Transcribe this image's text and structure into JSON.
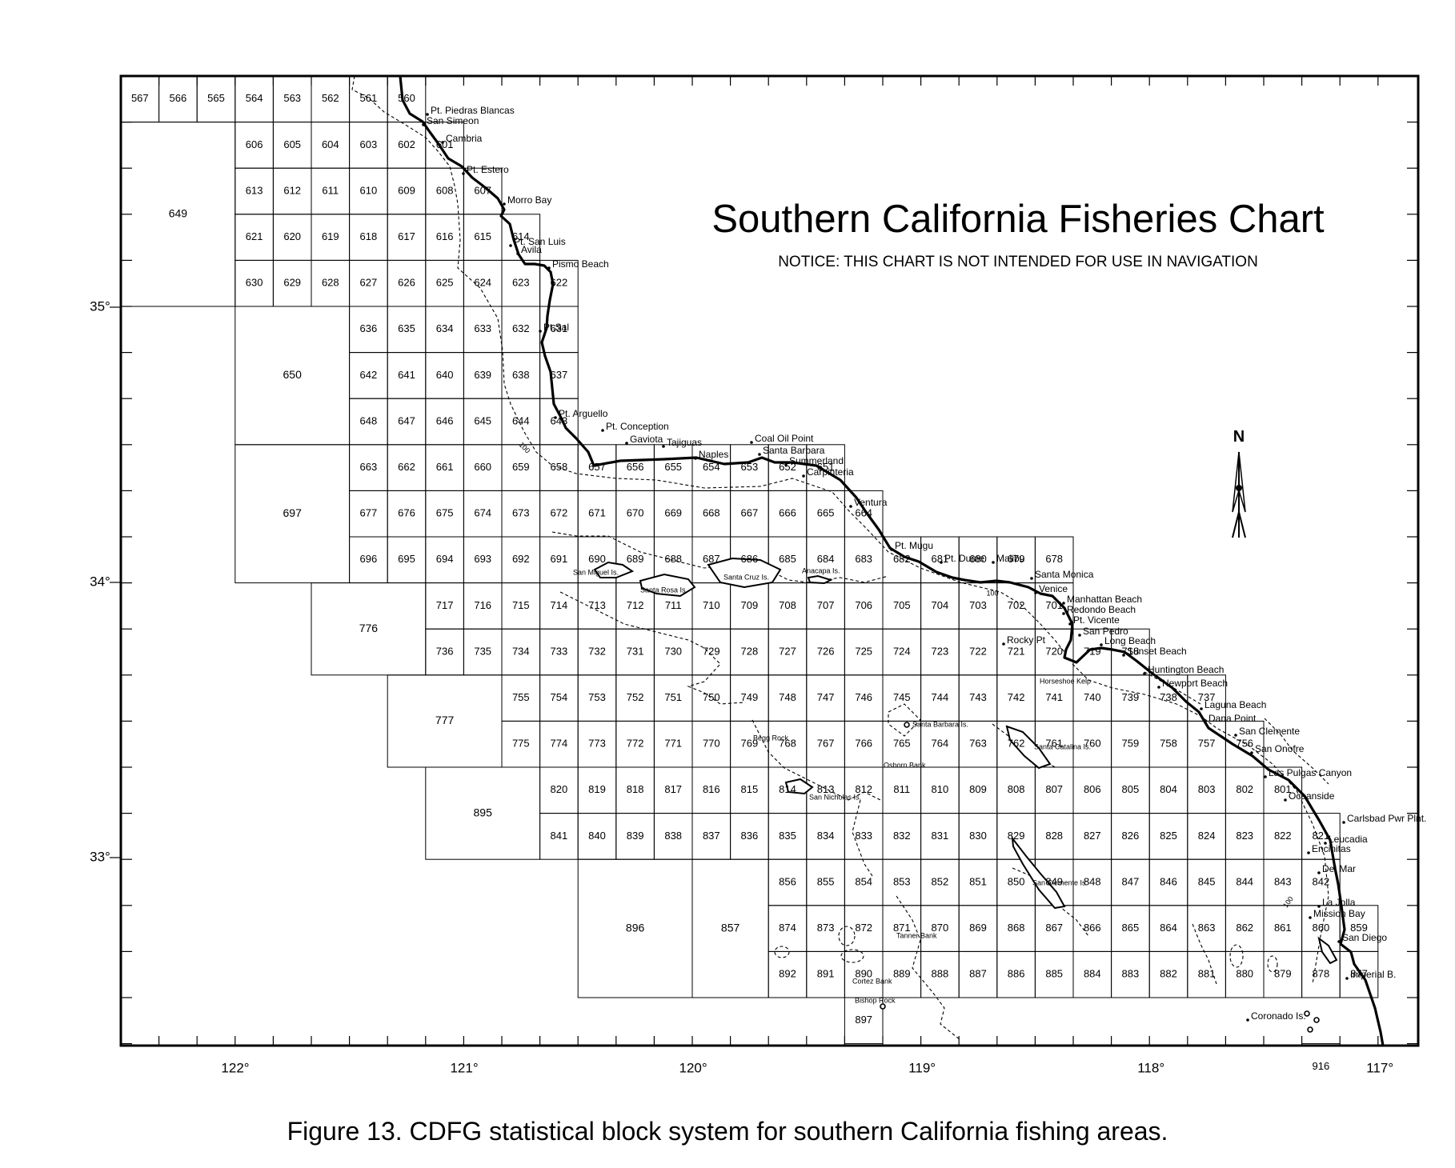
{
  "title": "Southern California Fisheries Chart",
  "notice": "NOTICE: THIS CHART IS NOT INTENDED FOR USE IN NAVIGATION",
  "caption": "Figure 13. CDFG statistical block system for southern California fishing areas.",
  "north_label": "N",
  "contour_label": "100",
  "longitude_labels": [
    {
      "label": "122°",
      "lon": -122
    },
    {
      "label": "121°",
      "lon": -121
    },
    {
      "label": "120°",
      "lon": -120
    },
    {
      "label": "119°",
      "lon": -119
    },
    {
      "label": "118°",
      "lon": -118
    },
    {
      "label": "117°",
      "lon": -117
    }
  ],
  "latitude_labels": [
    {
      "label": "35°",
      "lat": 35
    },
    {
      "label": "34°",
      "lat": 34
    },
    {
      "label": "33°",
      "lat": 33
    }
  ],
  "block_rows": [
    {
      "row": 0,
      "start_col": 0,
      "blocks": [
        "567",
        "566",
        "565",
        "564",
        "563",
        "562",
        "561",
        "560"
      ]
    },
    {
      "row": 1,
      "start_col": 3,
      "blocks": [
        "606",
        "605",
        "604",
        "603",
        "602",
        "601"
      ]
    },
    {
      "row": 2,
      "start_col": 3,
      "blocks": [
        "613",
        "612",
        "611",
        "610",
        "609",
        "608",
        "607"
      ]
    },
    {
      "row": 3,
      "start_col": 3,
      "blocks": [
        "621",
        "620",
        "619",
        "618",
        "617",
        "616",
        "615",
        "614"
      ]
    },
    {
      "row": 4,
      "start_col": 3,
      "blocks": [
        "630",
        "629",
        "628",
        "627",
        "626",
        "625",
        "624",
        "623",
        "622"
      ]
    },
    {
      "row": 5,
      "start_col": 6,
      "blocks": [
        "636",
        "635",
        "634",
        "633",
        "632",
        "631"
      ]
    },
    {
      "row": 6,
      "start_col": 6,
      "blocks": [
        "642",
        "641",
        "640",
        "639",
        "638",
        "637"
      ]
    },
    {
      "row": 7,
      "start_col": 6,
      "blocks": [
        "648",
        "647",
        "646",
        "645",
        "644",
        "643"
      ]
    },
    {
      "row": 8,
      "start_col": 6,
      "blocks": [
        "663",
        "662",
        "661",
        "660",
        "659",
        "658",
        "657",
        "656",
        "655",
        "654",
        "653",
        "652",
        "651"
      ]
    },
    {
      "row": 9,
      "start_col": 6,
      "blocks": [
        "677",
        "676",
        "675",
        "674",
        "673",
        "672",
        "671",
        "670",
        "669",
        "668",
        "667",
        "666",
        "665",
        "664"
      ]
    },
    {
      "row": 10,
      "start_col": 6,
      "blocks": [
        "696",
        "695",
        "694",
        "693",
        "692",
        "691",
        "690",
        "689",
        "688",
        "687",
        "686",
        "685",
        "684",
        "683",
        "682",
        "681",
        "680",
        "679",
        "678"
      ]
    },
    {
      "row": 11,
      "start_col": 8,
      "blocks": [
        "717",
        "716",
        "715",
        "714",
        "713",
        "712",
        "711",
        "710",
        "709",
        "708",
        "707",
        "706",
        "705",
        "704",
        "703",
        "702",
        "701"
      ]
    },
    {
      "row": 12,
      "start_col": 8,
      "blocks": [
        "736",
        "735",
        "734",
        "733",
        "732",
        "731",
        "730",
        "729",
        "728",
        "727",
        "726",
        "725",
        "724",
        "723",
        "722",
        "721",
        "720",
        "719",
        "718"
      ]
    },
    {
      "row": 13,
      "start_col": 10,
      "blocks": [
        "755",
        "754",
        "753",
        "752",
        "751",
        "750",
        "749",
        "748",
        "747",
        "746",
        "745",
        "744",
        "743",
        "742",
        "741",
        "740",
        "739",
        "738",
        "737"
      ]
    },
    {
      "row": 14,
      "start_col": 10,
      "blocks": [
        "775",
        "774",
        "773",
        "772",
        "771",
        "770",
        "769",
        "768",
        "767",
        "766",
        "765",
        "764",
        "763",
        "762",
        "761",
        "760",
        "759",
        "758",
        "757",
        "756"
      ]
    },
    {
      "row": 15,
      "start_col": 11,
      "blocks": [
        "820",
        "819",
        "818",
        "817",
        "816",
        "815",
        "814",
        "813",
        "812",
        "811",
        "810",
        "809",
        "808",
        "807",
        "806",
        "805",
        "804",
        "803",
        "802",
        "801"
      ]
    },
    {
      "row": 16,
      "start_col": 11,
      "blocks": [
        "841",
        "840",
        "839",
        "838",
        "837",
        "836",
        "835",
        "834",
        "833",
        "832",
        "831",
        "830",
        "829",
        "828",
        "827",
        "826",
        "825",
        "824",
        "823",
        "822",
        "821"
      ]
    },
    {
      "row": 17,
      "start_col": 17,
      "blocks": [
        "856",
        "855",
        "854",
        "853",
        "852",
        "851",
        "850",
        "849",
        "848",
        "847",
        "846",
        "845",
        "844",
        "843",
        "842"
      ]
    },
    {
      "row": 18,
      "start_col": 17,
      "blocks": [
        "874",
        "873",
        "872",
        "871",
        "870",
        "869",
        "868",
        "867",
        "866",
        "865",
        "864",
        "863",
        "862",
        "861",
        "860",
        "859"
      ]
    },
    {
      "row": 19,
      "start_col": 17,
      "blocks": [
        "892",
        "891",
        "890",
        "889",
        "888",
        "887",
        "886",
        "885",
        "884",
        "883",
        "882",
        "881",
        "880",
        "879",
        "878",
        "877"
      ]
    },
    {
      "row": 20,
      "start_col": 19,
      "blocks": [
        "897"
      ]
    },
    {
      "row": 21,
      "start_col": 31,
      "blocks": [
        "916"
      ]
    }
  ],
  "large_blocks": [
    {
      "label": "649",
      "c0": 0,
      "r0": 1,
      "c1": 3,
      "r1": 5
    },
    {
      "label": "650",
      "c0": 3,
      "r0": 5,
      "c1": 6,
      "r1": 8
    },
    {
      "label": "697",
      "c0": 3,
      "r0": 8,
      "c1": 6,
      "r1": 11
    },
    {
      "label": "776",
      "c0": 5,
      "r0": 11,
      "c1": 8,
      "r1": 13
    },
    {
      "label": "777",
      "c0": 7,
      "r0": 13,
      "c1": 10,
      "r1": 15
    },
    {
      "label": "895",
      "c0": 8,
      "r0": 15,
      "c1": 11,
      "r1": 17
    },
    {
      "label": "896",
      "c0": 12,
      "r0": 17,
      "c1": 15,
      "r1": 20
    },
    {
      "label": "857",
      "c0": 15,
      "r0": 17,
      "c1": 17,
      "r1": 20
    }
  ],
  "place_names": [
    "Pt. Piedras Blancas",
    "San Simeon",
    "Cambria",
    "Pt. Estero",
    "Morro Bay",
    "Pt. San Luis",
    "Avila",
    "Pismo Beach",
    "Pt.Sal",
    "Pt. Arguello",
    "Pt. Conception",
    "Gaviota",
    "Tajiguas",
    "Naples",
    "Coal Oil Point",
    "Santa Barbara",
    "Summerland",
    "Carpinteria",
    "Ventura",
    "Pt. Mugu",
    "Pt. Dume",
    "Malibu",
    "Santa Monica",
    "Venice",
    "Manhattan Beach",
    "Redondo Beach",
    "Pt. Vicente",
    "San Pedro",
    "Long Beach",
    "Sunset Beach",
    "Huntington Beach",
    "Newport Beach",
    "Laguna Beach",
    "Dana Point",
    "San Clemente",
    "San Onofre",
    "Las Pulgas Canyon",
    "Oceanside",
    "Carlsbad Pwr Plnt.",
    "Leucadia",
    "Encinitas",
    "Del Mar",
    "La Jolla",
    "Mission Bay",
    "San Diego",
    "Imperial B.",
    "Rocky Pt",
    "Coronado Is."
  ],
  "feature_names": [
    "San Miguel Is.",
    "Santa Rosa Is.",
    "Santa Cruz Is.",
    "Anacapa Is.",
    "Santa Barbara Is.",
    "Begg Rock",
    "Osborn Bank",
    "San Nicholas Is.",
    "Santa Catalina Is.",
    "Horseshoe Kelp",
    "San Clemente Is.",
    "Tanner Bank",
    "Cortez Bank",
    "Bishop Rock"
  ]
}
